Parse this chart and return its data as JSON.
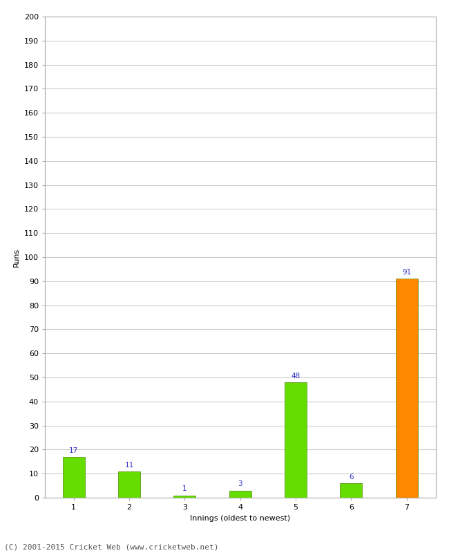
{
  "categories": [
    "1",
    "2",
    "3",
    "4",
    "5",
    "6",
    "7"
  ],
  "values": [
    17,
    11,
    1,
    3,
    48,
    6,
    91
  ],
  "bar_colors": [
    "#66dd00",
    "#66dd00",
    "#66dd00",
    "#66dd00",
    "#66dd00",
    "#66dd00",
    "#ff8800"
  ],
  "ylabel": "Runs",
  "xlabel": "Innings (oldest to newest)",
  "ylim": [
    0,
    200
  ],
  "yticks": [
    0,
    10,
    20,
    30,
    40,
    50,
    60,
    70,
    80,
    90,
    100,
    110,
    120,
    130,
    140,
    150,
    160,
    170,
    180,
    190,
    200
  ],
  "label_color": "#3333cc",
  "footer": "(C) 2001-2015 Cricket Web (www.cricketweb.net)",
  "background_color": "#ffffff",
  "grid_color": "#cccccc",
  "bar_edge_color": "#4a8800",
  "label_fontsize": 7.5,
  "axis_fontsize": 8,
  "footer_fontsize": 8,
  "bar_width": 0.4
}
